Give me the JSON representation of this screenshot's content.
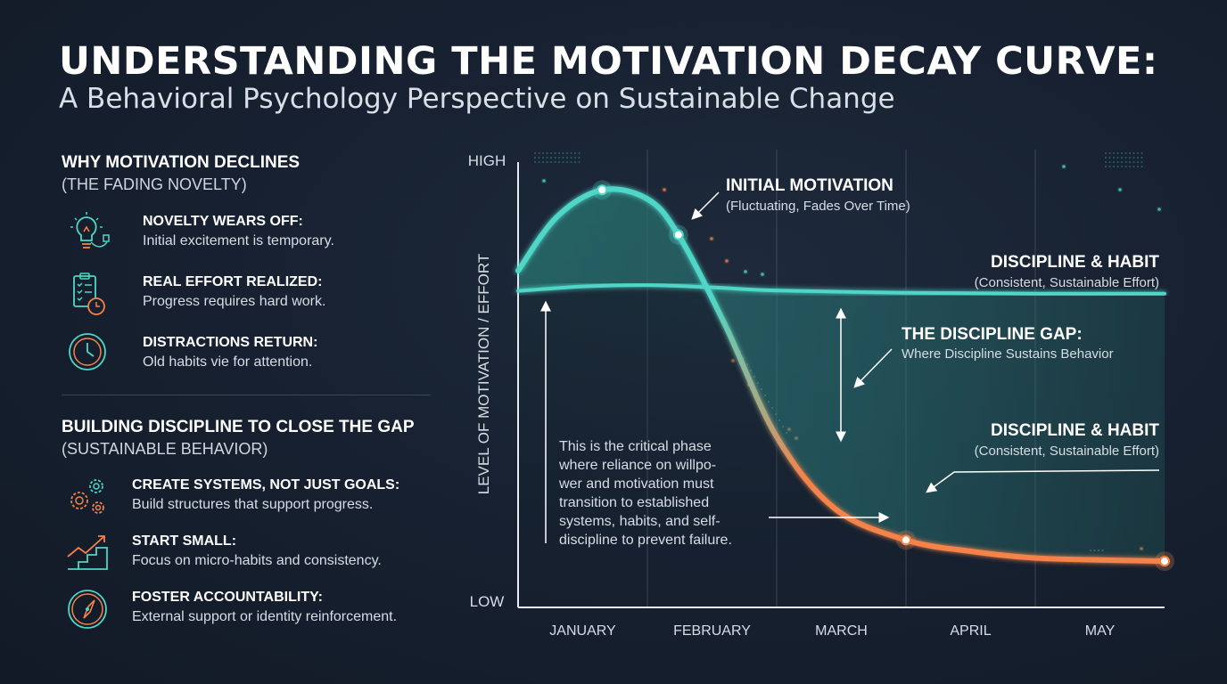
{
  "header": {
    "title": "UNDERSTANDING THE MOTIVATION DECAY CURVE:",
    "subtitle": "A Behavioral Psychology Perspective on Sustainable Change"
  },
  "left_panel": {
    "section1": {
      "title": "WHY MOTIVATION DECLINES",
      "subtitle": "(THE FADING NOVELTY)",
      "items": [
        {
          "icon": "lightbulb-icon",
          "heading": "NOVELTY WEARS OFF:",
          "desc": "Initial excitement is temporary."
        },
        {
          "icon": "checklist-clock-icon",
          "heading": "REAL EFFORT REALIZED:",
          "desc": "Progress requires hard work."
        },
        {
          "icon": "clock-icon",
          "heading": "DISTRACTIONS RETURN:",
          "desc": "Old habits vie for attention."
        }
      ]
    },
    "section2": {
      "title": "BUILDING DISCIPLINE TO CLOSE THE GAP",
      "subtitle": "(SUSTAINABLE BEHAVIOR)",
      "items": [
        {
          "icon": "gears-icon",
          "heading": "CREATE SYSTEMS, NOT JUST GOALS:",
          "desc": "Build structures that support progress."
        },
        {
          "icon": "stairs-arrow-icon",
          "heading": "START SMALL:",
          "desc": "Focus on micro-habits and consistency."
        },
        {
          "icon": "compass-icon",
          "heading": "FOSTER ACCOUNTABILITY:",
          "desc": "External support or identity reinforcement."
        }
      ]
    }
  },
  "colors": {
    "teal": "#4fd6c6",
    "orange": "#f4834a",
    "background": "#172131"
  },
  "chart_data": {
    "type": "line",
    "ylabel": "LEVEL OF MOTIVATION / EFFORT",
    "y_ticks": [
      "HIGH",
      "LOW"
    ],
    "ylim": [
      0,
      100
    ],
    "categories": [
      "JANUARY",
      "FEBRUARY",
      "MARCH",
      "APRIL",
      "MAY"
    ],
    "xlim": [
      0,
      5
    ],
    "grid": "vertical",
    "series": [
      {
        "name": "INITIAL MOTIVATION",
        "color_start": "#4fd6c6",
        "color_end": "#f4834a",
        "points": [
          [
            0,
            75
          ],
          [
            0.3,
            87
          ],
          [
            0.65,
            93
          ],
          [
            1.0,
            91
          ],
          [
            1.24,
            83
          ],
          [
            1.6,
            63
          ],
          [
            2.0,
            38
          ],
          [
            2.45,
            22
          ],
          [
            3.0,
            15
          ],
          [
            3.5,
            12.5
          ],
          [
            4.0,
            11
          ],
          [
            4.62,
            10.5
          ],
          [
            5.0,
            10.3
          ]
        ],
        "highlight_points": [
          [
            0.65,
            93
          ],
          [
            1.24,
            83
          ],
          [
            3.0,
            15
          ],
          [
            5.0,
            10.3
          ]
        ]
      },
      {
        "name": "DISCIPLINE & HABIT",
        "color": "#4fd6c6",
        "points": [
          [
            0,
            70.5
          ],
          [
            0.5,
            71.5
          ],
          [
            1.0,
            71.8
          ],
          [
            1.5,
            71.3
          ],
          [
            2.0,
            70.6
          ],
          [
            3.0,
            70.1
          ],
          [
            4.0,
            69.9
          ],
          [
            5.0,
            69.9
          ]
        ]
      }
    ],
    "annotations": {
      "initial_motivation": {
        "title": "INITIAL MOTIVATION",
        "sub": "(Fluctuating, Fades Over Time)"
      },
      "discipline_top": {
        "title": "DISCIPLINE & HABIT",
        "sub": "(Consistent, Sustainable Effort)"
      },
      "gap": {
        "title": "THE DISCIPLINE GAP:",
        "sub": "Where Discipline Sustains Behavior"
      },
      "discipline_low": {
        "title": "DISCIPLINE & HABIT",
        "sub": "(Consistent, Sustainable Effort)"
      },
      "critical_phase": [
        "This is the critical phase",
        "where reliance on willpo-",
        "wer and motivation must",
        "transition to established",
        "systems, habits, and self-",
        "discipline to prevent failure."
      ]
    }
  }
}
